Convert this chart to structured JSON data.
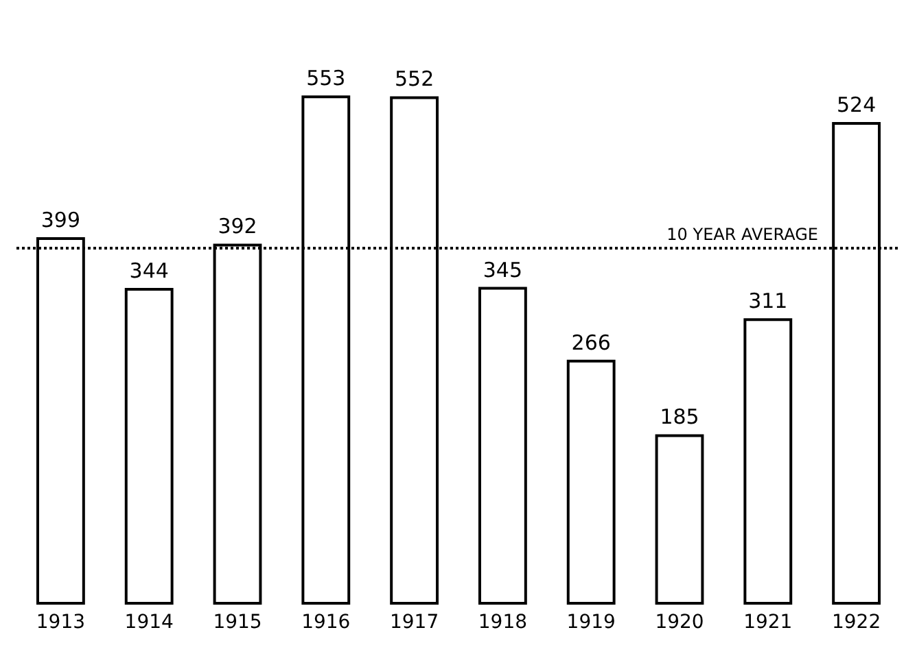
{
  "chart_data": {
    "type": "bar",
    "categories": [
      "1913",
      "1914",
      "1915",
      "1916",
      "1917",
      "1918",
      "1919",
      "1920",
      "1921",
      "1922"
    ],
    "values": [
      399,
      344,
      392,
      553,
      552,
      345,
      266,
      185,
      311,
      524
    ],
    "color": "#ffffff",
    "data_labels": true,
    "grid": false,
    "ref_lines": [
      {
        "axis": "y",
        "value": 387,
        "label": "10 YEAR AVERAGE",
        "color": "#000000",
        "line_style": "dotted"
      }
    ]
  }
}
